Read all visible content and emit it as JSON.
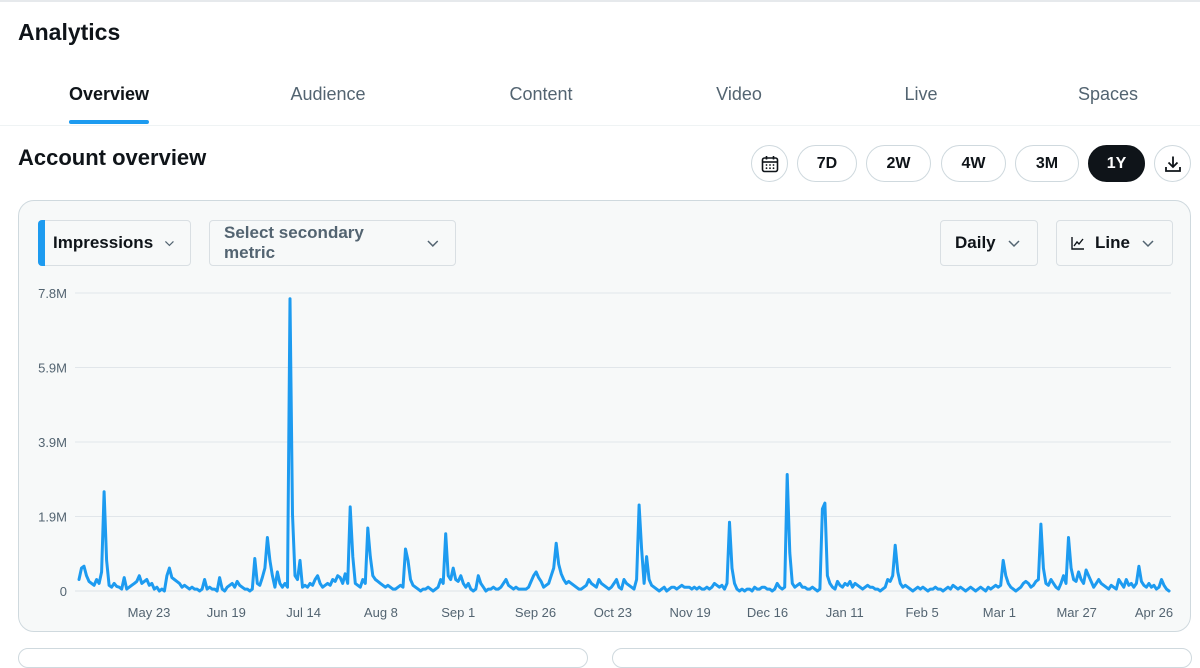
{
  "app": {
    "title": "Analytics"
  },
  "tabs": [
    {
      "label": "Overview",
      "active": true
    },
    {
      "label": "Audience",
      "active": false
    },
    {
      "label": "Content",
      "active": false
    },
    {
      "label": "Video",
      "active": false
    },
    {
      "label": "Live",
      "active": false
    },
    {
      "label": "Spaces",
      "active": false
    }
  ],
  "section": {
    "title": "Account overview"
  },
  "range_buttons": [
    {
      "label": "7D",
      "selected": false
    },
    {
      "label": "2W",
      "selected": false
    },
    {
      "label": "4W",
      "selected": false
    },
    {
      "label": "3M",
      "selected": false
    },
    {
      "label": "1Y",
      "selected": true
    }
  ],
  "icons": {
    "calendar": "calendar-icon",
    "download": "download-icon",
    "line_chart": "line-chart-icon",
    "chevron": "chevron-down-icon"
  },
  "controls": {
    "primary_metric": "Impressions",
    "secondary_metric": "Select secondary metric",
    "granularity": "Daily",
    "chart_type": "Line"
  },
  "colors": {
    "accent": "#1d9bf0",
    "text": "#0f1419",
    "muted": "#536471",
    "selected_button": "#0f1419"
  },
  "chart_data": {
    "type": "line",
    "ylim": [
      0,
      7.8
    ],
    "yticks": [
      "0",
      "1.9M",
      "3.9M",
      "5.9M",
      "7.8M"
    ],
    "xticks": [
      "May 23",
      "Jun 19",
      "Jul 14",
      "Aug 8",
      "Sep 1",
      "Sep 26",
      "Oct 23",
      "Nov 19",
      "Dec 16",
      "Jan 11",
      "Feb 5",
      "Mar 1",
      "Mar 27",
      "Apr 26"
    ],
    "grid": true,
    "series": [
      {
        "values": [
          0.3,
          0.6,
          0.65,
          0.4,
          0.25,
          0.2,
          0.15,
          0.3,
          0.2,
          0.5,
          2.6,
          0.8,
          0.15,
          0.1,
          0.2,
          0.12,
          0.1,
          0.05,
          0.35,
          0.05,
          0.1,
          0.15,
          0.2,
          0.25,
          0.4,
          0.2,
          0.25,
          0.3,
          0.15,
          0.2,
          0.05,
          0.1,
          0.0,
          0.05,
          0.0,
          0.4,
          0.6,
          0.35,
          0.3,
          0.25,
          0.2,
          0.1,
          0.15,
          0.1,
          0.05,
          0.1,
          0.05,
          0.05,
          0.0,
          0.05,
          0.3,
          0.05,
          0.1,
          0.05,
          0.05,
          0.0,
          0.35,
          0.05,
          0.0,
          0.1,
          0.15,
          0.2,
          0.1,
          0.25,
          0.15,
          0.1,
          0.05,
          0.05,
          0.0,
          0.05,
          0.85,
          0.2,
          0.15,
          0.35,
          0.6,
          1.4,
          0.8,
          0.4,
          0.1,
          0.5,
          0.2,
          0.1,
          0.2,
          0.1,
          7.65,
          2.0,
          0.4,
          0.3,
          0.8,
          0.1,
          0.15,
          0.1,
          0.2,
          0.15,
          0.3,
          0.4,
          0.2,
          0.1,
          0.15,
          0.2,
          0.15,
          0.3,
          0.25,
          0.4,
          0.35,
          0.2,
          0.45,
          0.2,
          2.2,
          0.9,
          0.2,
          0.15,
          0.1,
          0.3,
          0.2,
          1.65,
          0.9,
          0.4,
          0.3,
          0.25,
          0.2,
          0.15,
          0.1,
          0.15,
          0.1,
          0.05,
          0.05,
          0.1,
          0.15,
          0.1,
          1.1,
          0.8,
          0.3,
          0.15,
          0.1,
          0.05,
          0.0,
          0.05,
          0.05,
          0.1,
          0.05,
          0.0,
          0.05,
          0.1,
          0.3,
          0.2,
          1.5,
          0.4,
          0.3,
          0.6,
          0.3,
          0.25,
          0.4,
          0.2,
          0.1,
          0.2,
          0.05,
          0.0,
          0.05,
          0.4,
          0.2,
          0.1,
          0.0,
          0.05,
          0.05,
          0.1,
          0.05,
          0.05,
          0.1,
          0.2,
          0.3,
          0.15,
          0.1,
          0.05,
          0.1,
          0.05,
          0.05,
          0.05,
          0.05,
          0.1,
          0.25,
          0.4,
          0.5,
          0.35,
          0.25,
          0.1,
          0.15,
          0.2,
          0.4,
          0.6,
          1.25,
          0.7,
          0.45,
          0.3,
          0.2,
          0.25,
          0.2,
          0.15,
          0.1,
          0.05,
          0.05,
          0.1,
          0.15,
          0.3,
          0.2,
          0.15,
          0.1,
          0.3,
          0.2,
          0.15,
          0.1,
          0.05,
          0.1,
          0.2,
          0.3,
          0.1,
          0.05,
          0.3,
          0.2,
          0.15,
          0.1,
          0.05,
          0.3,
          2.25,
          1.1,
          0.2,
          0.9,
          0.3,
          0.15,
          0.1,
          0.05,
          0.0,
          0.05,
          0.1,
          0.0,
          0.05,
          0.1,
          0.1,
          0.05,
          0.1,
          0.15,
          0.1,
          0.1,
          0.1,
          0.05,
          0.1,
          0.05,
          0.1,
          0.05,
          0.05,
          0.1,
          0.05,
          0.1,
          0.2,
          0.15,
          0.1,
          0.15,
          0.05,
          0.2,
          1.8,
          0.6,
          0.2,
          0.05,
          0.0,
          0.05,
          0.0,
          0.05,
          0.05,
          0.0,
          0.1,
          0.05,
          0.05,
          0.1,
          0.1,
          0.05,
          0.05,
          0.0,
          0.05,
          0.2,
          0.1,
          0.05,
          0.1,
          3.05,
          1.0,
          0.2,
          0.1,
          0.15,
          0.2,
          0.1,
          0.1,
          0.05,
          0.05,
          0.1,
          0.05,
          0.0,
          0.05,
          2.15,
          2.3,
          0.4,
          0.2,
          0.1,
          0.05,
          0.25,
          0.15,
          0.1,
          0.2,
          0.15,
          0.25,
          0.1,
          0.2,
          0.15,
          0.1,
          0.05,
          0.1,
          0.15,
          0.1,
          0.1,
          0.05,
          0.05,
          0.0,
          0.05,
          0.1,
          0.3,
          0.25,
          0.4,
          1.2,
          0.5,
          0.2,
          0.1,
          0.15,
          0.1,
          0.05,
          0.0,
          0.05,
          0.1,
          0.05,
          0.1,
          0.05,
          0.0,
          0.05,
          0.05,
          0.1,
          0.05,
          0.05,
          0.0,
          0.05,
          0.1,
          0.05,
          0.15,
          0.1,
          0.05,
          0.1,
          0.05,
          0.0,
          0.05,
          0.1,
          0.05,
          0.0,
          0.05,
          0.1,
          0.05,
          0.0,
          0.1,
          0.05,
          0.1,
          0.15,
          0.1,
          0.15,
          0.8,
          0.4,
          0.2,
          0.1,
          0.05,
          0.0,
          0.05,
          0.1,
          0.2,
          0.25,
          0.2,
          0.1,
          0.15,
          0.25,
          0.3,
          1.75,
          0.6,
          0.2,
          0.15,
          0.3,
          0.2,
          0.1,
          0.05,
          0.2,
          0.4,
          0.2,
          1.4,
          0.6,
          0.3,
          0.25,
          0.5,
          0.3,
          0.2,
          0.55,
          0.4,
          0.25,
          0.1,
          0.2,
          0.3,
          0.2,
          0.15,
          0.1,
          0.05,
          0.15,
          0.1,
          0.05,
          0.3,
          0.2,
          0.1,
          0.3,
          0.15,
          0.2,
          0.1,
          0.2,
          0.65,
          0.25,
          0.15,
          0.1,
          0.2,
          0.1,
          0.15,
          0.05,
          0.1,
          0.3,
          0.15,
          0.05,
          0.0
        ]
      }
    ]
  }
}
